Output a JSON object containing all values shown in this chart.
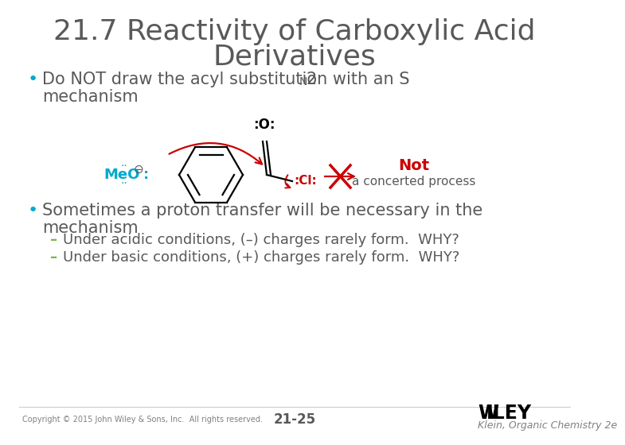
{
  "title_line1": "21.7 Reactivity of Carboxylic Acid",
  "title_line2": "Derivatives",
  "title_color": "#595959",
  "title_fontsize": 26,
  "bg_color": "#ffffff",
  "bullet_color": "#595959",
  "bullet_fontsize": 15,
  "sub_fontsize": 13,
  "not_color": "#cc0000",
  "meo_color": "#00aacc",
  "arrow_color": "#cc0000",
  "dash_color": "#7ab648",
  "footer_left": "Copyright © 2015 John Wiley & Sons, Inc.  All rights reserved.",
  "footer_center": "21-25",
  "footer_right_line1": "WILEY",
  "footer_right_line2": "Klein, Organic Chemistry 2e",
  "footer_color": "#808080"
}
